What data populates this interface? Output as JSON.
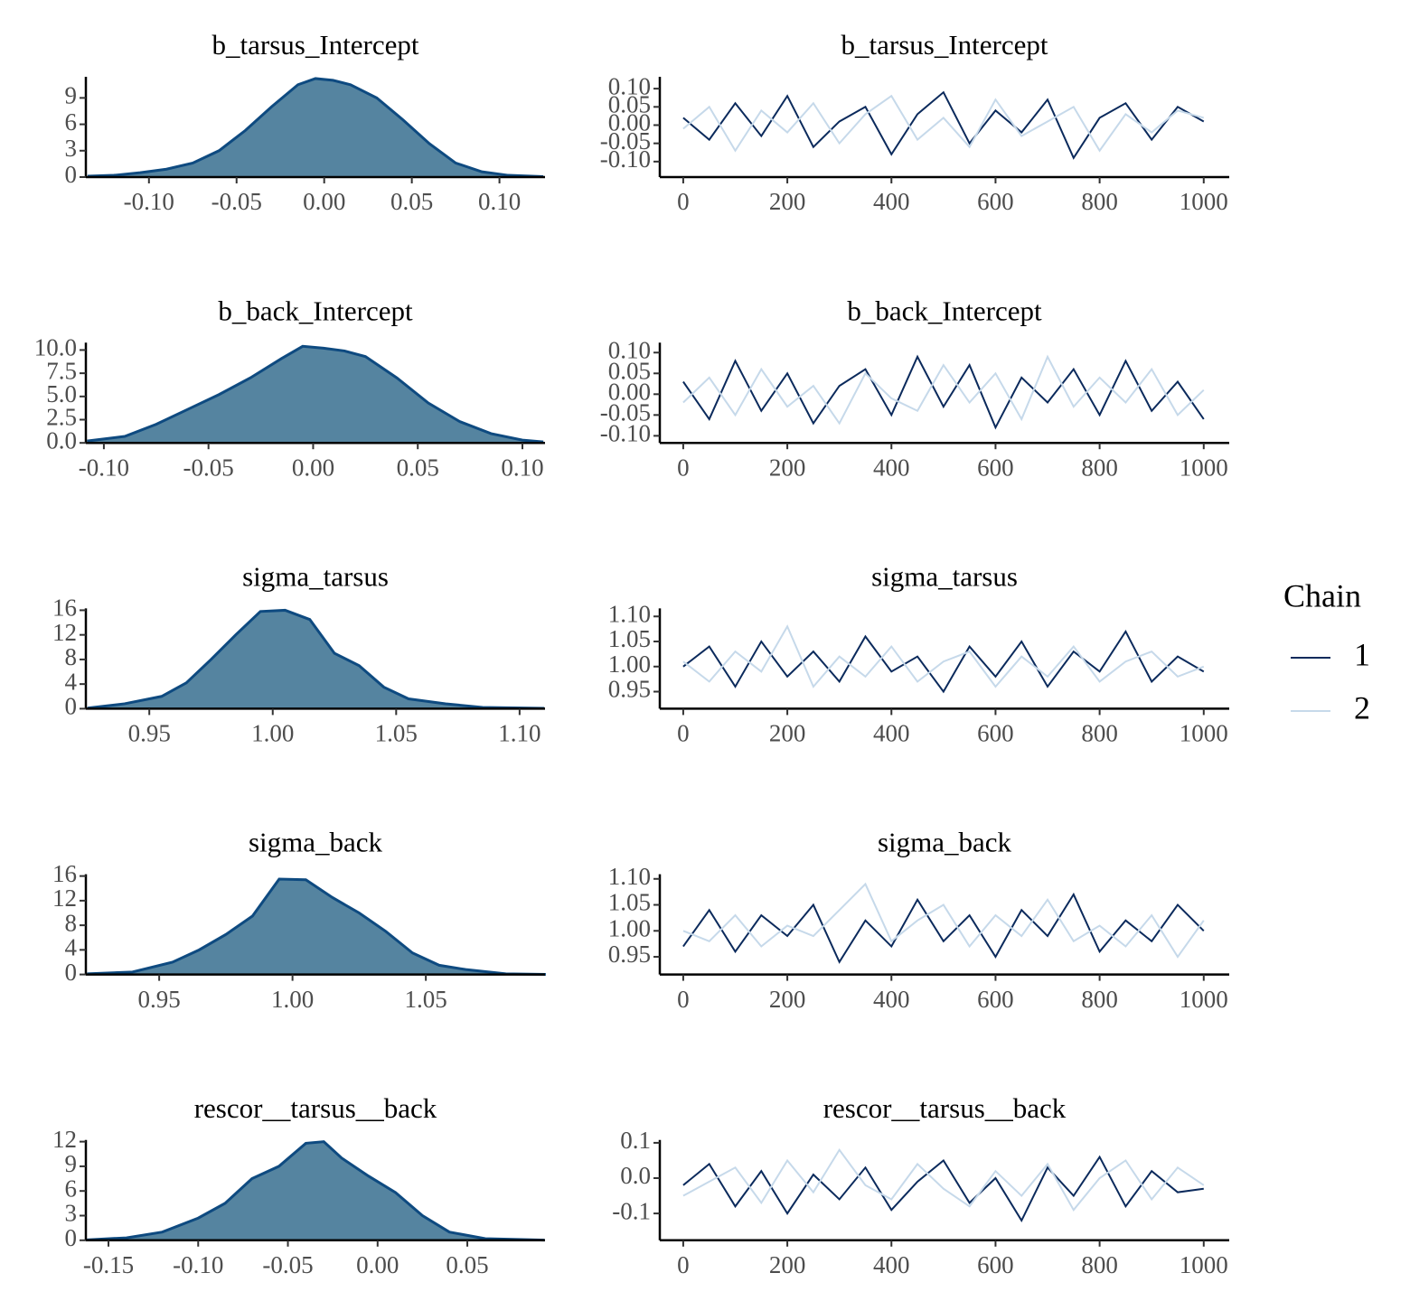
{
  "chart_data": [
    {
      "type": "density",
      "title": "b_tarsus_Intercept",
      "color": "#5584a0",
      "line_color": "#0e4a80",
      "x": [
        -0.135,
        -0.12,
        -0.105,
        -0.09,
        -0.075,
        -0.06,
        -0.045,
        -0.03,
        -0.015,
        -0.005,
        0.005,
        0.015,
        0.03,
        0.045,
        0.06,
        0.075,
        0.09,
        0.105,
        0.125
      ],
      "values": [
        0.1,
        0.2,
        0.5,
        0.9,
        1.6,
        3.0,
        5.3,
        8.0,
        10.5,
        11.2,
        11.0,
        10.5,
        9.0,
        6.5,
        3.8,
        1.6,
        0.6,
        0.2,
        0.05
      ],
      "xlim": [
        -0.136,
        0.126
      ],
      "xticks": [
        {
          "value": -0.1,
          "label": "-0.10"
        },
        {
          "value": -0.05,
          "label": "-0.05"
        },
        {
          "value": 0,
          "label": "0.00"
        },
        {
          "value": 0.05,
          "label": "0.05"
        },
        {
          "value": 0.1,
          "label": "0.10"
        }
      ],
      "ylim": [
        0,
        11.4
      ],
      "yticks": [
        0,
        3,
        6,
        9
      ]
    },
    {
      "type": "trace",
      "title": "b_tarsus_Intercept",
      "x": [
        0,
        50,
        100,
        150,
        200,
        250,
        300,
        350,
        400,
        450,
        500,
        550,
        600,
        650,
        700,
        750,
        800,
        850,
        900,
        950,
        1000
      ],
      "series": [
        {
          "color": "#0b2a5c",
          "values": [
            0.02,
            -0.04,
            0.06,
            -0.03,
            0.08,
            -0.06,
            0.01,
            0.05,
            -0.08,
            0.03,
            0.09,
            -0.05,
            0.04,
            -0.02,
            0.07,
            -0.09,
            0.02,
            0.06,
            -0.04,
            0.05,
            0.01
          ]
        },
        {
          "color": "#c6d9ea",
          "values": [
            -0.01,
            0.05,
            -0.07,
            0.04,
            -0.02,
            0.06,
            -0.05,
            0.03,
            0.08,
            -0.04,
            0.02,
            -0.06,
            0.07,
            -0.03,
            0.01,
            0.05,
            -0.07,
            0.03,
            -0.02,
            0.04,
            0.02
          ]
        }
      ],
      "xlim": [
        -45,
        1049
      ],
      "xticks": [
        0,
        200,
        400,
        600,
        800,
        1000
      ],
      "ylim": [
        -0.1425,
        0.1325
      ],
      "yticks": [
        {
          "value": -0.1,
          "label": "-0.10"
        },
        {
          "value": -0.05,
          "label": "-0.05"
        },
        {
          "value": 0,
          "label": "0.00"
        },
        {
          "value": 0.05,
          "label": "0.05"
        },
        {
          "value": 0.1,
          "label": "0.10"
        }
      ]
    },
    {
      "type": "density",
      "title": "b_back_Intercept",
      "color": "#5584a0",
      "line_color": "#0e4a80",
      "x": [
        -0.108,
        -0.09,
        -0.075,
        -0.06,
        -0.045,
        -0.03,
        -0.015,
        -0.005,
        0.005,
        0.015,
        0.025,
        0.04,
        0.055,
        0.07,
        0.085,
        0.1,
        0.11
      ],
      "values": [
        0.2,
        0.7,
        2.0,
        3.6,
        5.2,
        7.0,
        9.1,
        10.4,
        10.2,
        9.9,
        9.3,
        7.0,
        4.3,
        2.3,
        1.0,
        0.3,
        0.1
      ],
      "xlim": [
        -0.1086,
        0.1108
      ],
      "xticks": [
        {
          "value": -0.1,
          "label": "-0.10"
        },
        {
          "value": -0.05,
          "label": "-0.05"
        },
        {
          "value": 0,
          "label": "0.00"
        },
        {
          "value": 0.05,
          "label": "0.05"
        },
        {
          "value": 0.1,
          "label": "0.10"
        }
      ],
      "ylim": [
        0,
        10.8
      ],
      "yticks": [
        {
          "value": 0,
          "label": "0.0"
        },
        {
          "value": 2.5,
          "label": "2.5"
        },
        {
          "value": 5,
          "label": "5.0"
        },
        {
          "value": 7.5,
          "label": "7.5"
        },
        {
          "value": 10,
          "label": "10.0"
        }
      ]
    },
    {
      "type": "trace",
      "title": "b_back_Intercept",
      "x": [
        0,
        50,
        100,
        150,
        200,
        250,
        300,
        350,
        400,
        450,
        500,
        550,
        600,
        650,
        700,
        750,
        800,
        850,
        900,
        950,
        1000
      ],
      "series": [
        {
          "color": "#0b2a5c",
          "values": [
            0.03,
            -0.06,
            0.08,
            -0.04,
            0.05,
            -0.07,
            0.02,
            0.06,
            -0.05,
            0.09,
            -0.03,
            0.07,
            -0.08,
            0.04,
            -0.02,
            0.06,
            -0.05,
            0.08,
            -0.04,
            0.03,
            -0.06
          ]
        },
        {
          "color": "#c6d9ea",
          "values": [
            -0.02,
            0.04,
            -0.05,
            0.06,
            -0.03,
            0.02,
            -0.07,
            0.05,
            -0.01,
            -0.04,
            0.07,
            -0.02,
            0.05,
            -0.06,
            0.09,
            -0.03,
            0.04,
            -0.02,
            0.06,
            -0.05,
            0.01
          ]
        }
      ],
      "xlim": [
        -45,
        1049
      ],
      "xticks": [
        0,
        200,
        400,
        600,
        800,
        1000
      ],
      "ylim": [
        -0.117,
        0.124
      ],
      "yticks": [
        {
          "value": -0.1,
          "label": "-0.10"
        },
        {
          "value": -0.05,
          "label": "-0.05"
        },
        {
          "value": 0,
          "label": "0.00"
        },
        {
          "value": 0.05,
          "label": "0.05"
        },
        {
          "value": 0.1,
          "label": "0.10"
        }
      ]
    },
    {
      "type": "density",
      "title": "sigma_tarsus",
      "color": "#5584a0",
      "line_color": "#0e4a80",
      "x": [
        0.925,
        0.94,
        0.955,
        0.965,
        0.975,
        0.985,
        0.995,
        1.005,
        1.015,
        1.025,
        1.035,
        1.045,
        1.055,
        1.07,
        1.085,
        1.11
      ],
      "values": [
        0.1,
        0.8,
        2.0,
        4.2,
        8.0,
        12.0,
        15.8,
        16.0,
        14.5,
        9.0,
        7.0,
        3.5,
        1.6,
        0.8,
        0.2,
        0.05
      ],
      "xlim": [
        0.9243,
        1.1103
      ],
      "xticks": [
        {
          "value": 0.95,
          "label": "0.95"
        },
        {
          "value": 1,
          "label": "1.00"
        },
        {
          "value": 1.05,
          "label": "1.05"
        },
        {
          "value": 1.1,
          "label": "1.10"
        }
      ],
      "ylim": [
        0,
        16.3
      ],
      "yticks": [
        0,
        4,
        8,
        12,
        16
      ]
    },
    {
      "type": "trace",
      "title": "sigma_tarsus",
      "x": [
        0,
        50,
        100,
        150,
        200,
        250,
        300,
        350,
        400,
        450,
        500,
        550,
        600,
        650,
        700,
        750,
        800,
        850,
        900,
        950,
        1000
      ],
      "series": [
        {
          "color": "#0b2a5c",
          "values": [
            1.0,
            1.04,
            0.96,
            1.05,
            0.98,
            1.03,
            0.97,
            1.06,
            0.99,
            1.02,
            0.95,
            1.04,
            0.98,
            1.05,
            0.96,
            1.03,
            0.99,
            1.07,
            0.97,
            1.02,
            0.99
          ]
        },
        {
          "color": "#c6d9ea",
          "values": [
            1.01,
            0.97,
            1.03,
            0.99,
            1.08,
            0.96,
            1.02,
            0.98,
            1.04,
            0.97,
            1.01,
            1.03,
            0.96,
            1.02,
            0.98,
            1.04,
            0.97,
            1.01,
            1.03,
            0.98,
            1.0
          ]
        }
      ],
      "xlim": [
        -45,
        1049
      ],
      "xticks": [
        0,
        200,
        400,
        600,
        800,
        1000
      ],
      "ylim": [
        0.916,
        1.116
      ],
      "yticks": [
        {
          "value": 0.95,
          "label": "0.95"
        },
        {
          "value": 1,
          "label": "1.00"
        },
        {
          "value": 1.05,
          "label": "1.05"
        },
        {
          "value": 1.1,
          "label": "1.10"
        }
      ]
    },
    {
      "type": "density",
      "title": "sigma_back",
      "color": "#5584a0",
      "line_color": "#0e4a80",
      "x": [
        0.923,
        0.94,
        0.955,
        0.965,
        0.975,
        0.985,
        0.995,
        1.005,
        1.015,
        1.025,
        1.035,
        1.045,
        1.055,
        1.065,
        1.08,
        1.095
      ],
      "values": [
        0.1,
        0.4,
        2.0,
        4.0,
        6.5,
        9.5,
        15.5,
        15.4,
        12.5,
        10.0,
        7.0,
        3.5,
        1.5,
        0.8,
        0.1,
        0.02
      ],
      "xlim": [
        0.9225,
        1.0947
      ],
      "xticks": [
        {
          "value": 0.95,
          "label": "0.95"
        },
        {
          "value": 1,
          "label": "1.00"
        },
        {
          "value": 1.05,
          "label": "1.05"
        }
      ],
      "ylim": [
        0,
        16.3
      ],
      "yticks": [
        0,
        4,
        8,
        12,
        16
      ]
    },
    {
      "type": "trace",
      "title": "sigma_back",
      "x": [
        0,
        50,
        100,
        150,
        200,
        250,
        300,
        350,
        400,
        450,
        500,
        550,
        600,
        650,
        700,
        750,
        800,
        850,
        900,
        950,
        1000
      ],
      "series": [
        {
          "color": "#0b2a5c",
          "values": [
            0.97,
            1.04,
            0.96,
            1.03,
            0.99,
            1.05,
            0.94,
            1.02,
            0.97,
            1.06,
            0.98,
            1.03,
            0.95,
            1.04,
            0.99,
            1.07,
            0.96,
            1.02,
            0.98,
            1.05,
            1.0
          ]
        },
        {
          "color": "#c6d9ea",
          "values": [
            1.0,
            0.98,
            1.03,
            0.97,
            1.01,
            0.99,
            1.04,
            1.09,
            0.98,
            1.02,
            1.05,
            0.97,
            1.03,
            0.99,
            1.06,
            0.98,
            1.01,
            0.97,
            1.03,
            0.95,
            1.02
          ]
        }
      ],
      "xlim": [
        -45,
        1049
      ],
      "xticks": [
        0,
        200,
        400,
        600,
        800,
        1000
      ],
      "ylim": [
        0.916,
        1.109
      ],
      "yticks": [
        {
          "value": 0.95,
          "label": "0.95"
        },
        {
          "value": 1,
          "label": "1.00"
        },
        {
          "value": 1.05,
          "label": "1.05"
        },
        {
          "value": 1.1,
          "label": "1.10"
        }
      ]
    },
    {
      "type": "density",
      "title": "rescor__tarsus__back",
      "color": "#5584a0",
      "line_color": "#0e4a80",
      "x": [
        -0.162,
        -0.14,
        -0.12,
        -0.1,
        -0.085,
        -0.07,
        -0.055,
        -0.04,
        -0.03,
        -0.02,
        -0.005,
        0.01,
        0.025,
        0.04,
        0.06,
        0.093
      ],
      "values": [
        0.05,
        0.3,
        1.0,
        2.7,
        4.5,
        7.5,
        9.0,
        11.8,
        12.0,
        10.0,
        7.8,
        5.8,
        3.0,
        1.0,
        0.2,
        0.02
      ],
      "xlim": [
        -0.1626,
        0.0933
      ],
      "xticks": [
        {
          "value": -0.15,
          "label": "-0.15"
        },
        {
          "value": -0.1,
          "label": "-0.10"
        },
        {
          "value": -0.05,
          "label": "-0.05"
        },
        {
          "value": 0,
          "label": "0.00"
        },
        {
          "value": 0.05,
          "label": "0.05"
        }
      ],
      "ylim": [
        0,
        12.2
      ],
      "yticks": [
        0,
        3,
        6,
        9,
        12
      ]
    },
    {
      "type": "trace",
      "title": "rescor__tarsus__back",
      "x": [
        0,
        50,
        100,
        150,
        200,
        250,
        300,
        350,
        400,
        450,
        500,
        550,
        600,
        650,
        700,
        750,
        800,
        850,
        900,
        950,
        1000
      ],
      "series": [
        {
          "color": "#0b2a5c",
          "values": [
            -0.02,
            0.04,
            -0.08,
            0.02,
            -0.1,
            0.01,
            -0.06,
            0.03,
            -0.09,
            -0.01,
            0.05,
            -0.07,
            0.0,
            -0.12,
            0.03,
            -0.05,
            0.06,
            -0.08,
            0.02,
            -0.04,
            -0.03
          ]
        },
        {
          "color": "#c6d9ea",
          "values": [
            -0.05,
            -0.01,
            0.03,
            -0.07,
            0.05,
            -0.04,
            0.08,
            -0.02,
            -0.06,
            0.04,
            -0.03,
            -0.08,
            0.02,
            -0.05,
            0.04,
            -0.09,
            0.0,
            0.05,
            -0.06,
            0.03,
            -0.02
          ]
        }
      ],
      "xlim": [
        -45,
        1049
      ],
      "xticks": [
        0,
        200,
        400,
        600,
        800,
        1000
      ],
      "ylim": [
        -0.176,
        0.108
      ],
      "yticks": [
        {
          "value": -0.1,
          "label": "-0.1"
        },
        {
          "value": 0,
          "label": "0.0"
        },
        {
          "value": 0.1,
          "label": "0.1"
        }
      ]
    }
  ],
  "legend": {
    "title": "Chain",
    "entries": [
      {
        "name": "1",
        "color": "#0b2a5c"
      },
      {
        "name": "2",
        "color": "#c6d9ea"
      }
    ]
  }
}
